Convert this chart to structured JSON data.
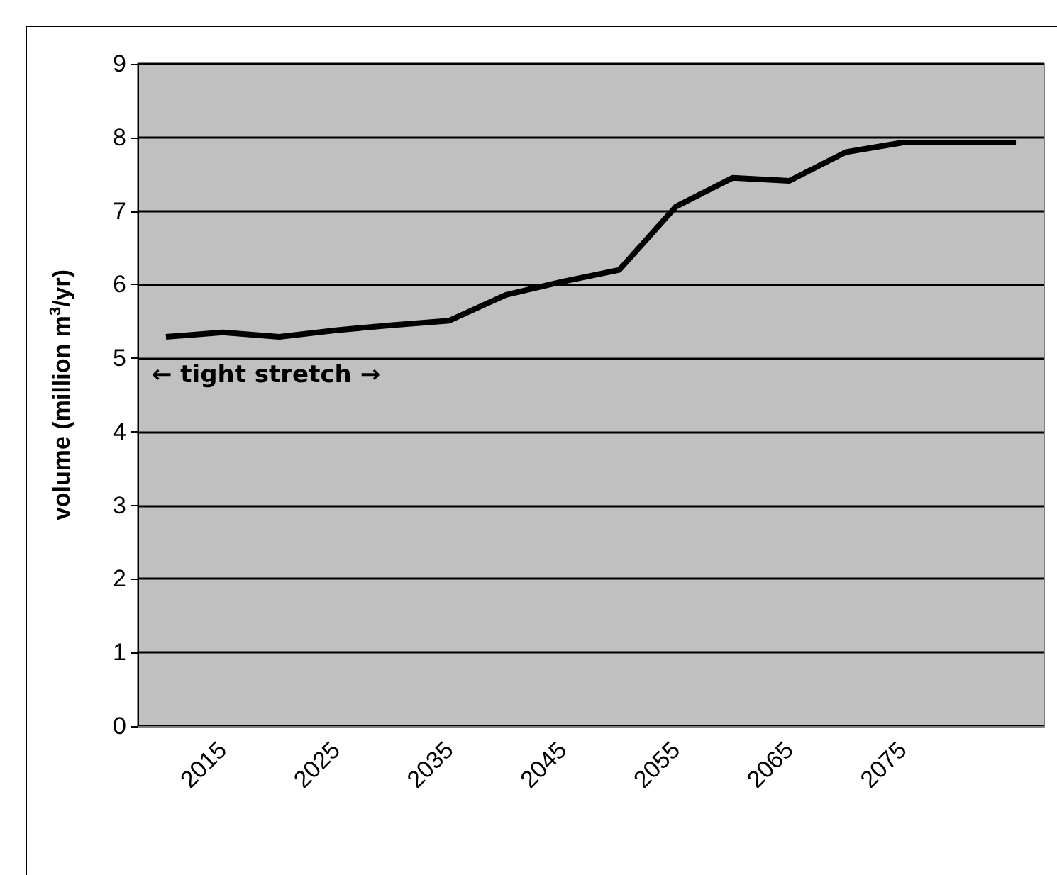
{
  "chart_data": {
    "type": "line",
    "ylabel": "volume (million m$^{3}$/yr)",
    "categories": [
      null,
      "2015",
      null,
      "2025",
      null,
      "2035",
      null,
      "2045",
      null,
      "2055",
      null,
      "2065",
      null,
      "2075",
      null,
      null
    ],
    "series": [
      {
        "color": "#000000",
        "values": [
          5.29,
          5.35,
          5.29,
          5.38,
          5.45,
          5.51,
          5.86,
          6.04,
          6.2,
          7.06,
          7.45,
          7.41,
          7.8,
          7.93,
          7.93,
          7.93
        ]
      }
    ],
    "ylim": [
      0,
      9
    ],
    "yticks": [
      0,
      1,
      2,
      3,
      4,
      5,
      6,
      7,
      8,
      9
    ],
    "grid": "y",
    "marker": "none",
    "line_style": "solid",
    "annotations": [
      "← tight stretch →"
    ]
  }
}
